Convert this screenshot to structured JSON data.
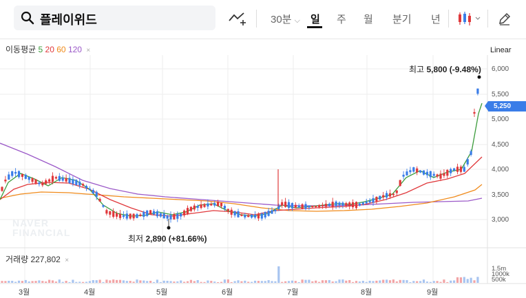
{
  "search": {
    "query": "플레이위드"
  },
  "toolbar": {
    "interval_30": "30분",
    "interval_30_arrow": "⌵",
    "day": "일",
    "week": "주",
    "month": "월",
    "quarter": "분기",
    "year": "년"
  },
  "indicators": {
    "ma_title": "이동평균",
    "ma5": "5",
    "ma20": "20",
    "ma60": "60",
    "ma120": "120",
    "remove": "×",
    "scale": "Linear",
    "volume_label": "거래량 227,802"
  },
  "watermark": {
    "line1": "NAVER",
    "line2": "FINANCIAL"
  },
  "annotations": {
    "high_label": "최고",
    "high_value": "5,800 (-9.48%)",
    "low_label": "최저",
    "low_value": "2,890 (+81.66%)"
  },
  "current_price": "5,250",
  "y_ticks": [
    "6,000",
    "5,500",
    "5,000",
    "4,500",
    "4,000",
    "3,500",
    "3,000"
  ],
  "vol_ticks": [
    "1.5m",
    "1000k",
    "500k"
  ],
  "x_ticks": [
    "3월",
    "4월",
    "5월",
    "6월",
    "7월",
    "8월",
    "9월"
  ],
  "colors": {
    "up": "#e0383b",
    "down": "#3a7de8",
    "ma5": "#3a9b3a",
    "ma20": "#e0383b",
    "ma60": "#f08a1a",
    "ma120": "#9b59c8"
  }
}
